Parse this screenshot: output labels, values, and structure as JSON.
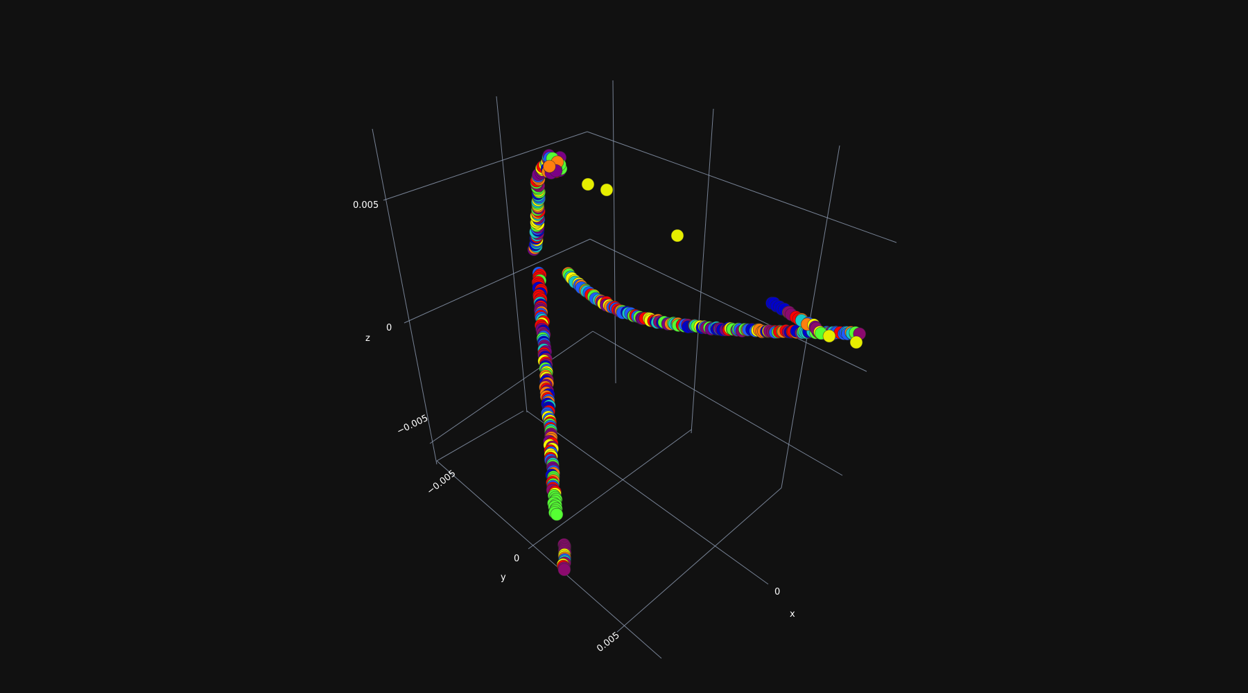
{
  "chart_data": {
    "type": "scatter",
    "subtype": "3d-scatter",
    "title": "",
    "background": "#111111",
    "grid_color": "#8a96ad",
    "text_color": "#ffffff",
    "axes": {
      "x": {
        "label": "x",
        "ticks": [
          "0",
          "0.005"
        ],
        "tick_values": [
          0,
          0.005
        ]
      },
      "y": {
        "label": "y",
        "ticks": [
          "0",
          "0.005",
          "−0.005"
        ],
        "tick_values": [
          0,
          0.005,
          -0.005
        ]
      },
      "z": {
        "label": "z",
        "ticks": [
          "0.005",
          "0",
          "−0.005"
        ],
        "tick_values": [
          0.005,
          0,
          -0.005
        ]
      }
    },
    "marker_palette": [
      "#ff0000",
      "#ff7f0e",
      "#ffff00",
      "#55ff33",
      "#17c8c8",
      "#1f5cff",
      "#0000cc",
      "#8b0a6e",
      "#7b0085"
    ],
    "series": [
      {
        "name": "",
        "description_points": 1
      }
    ]
  }
}
